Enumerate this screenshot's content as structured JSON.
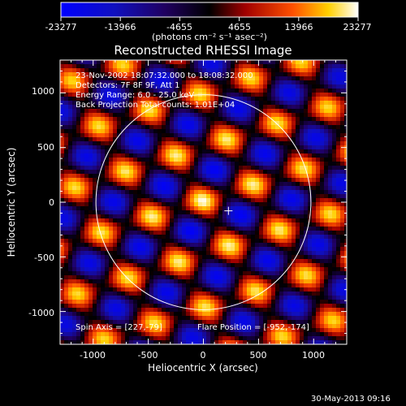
{
  "colorbar": {
    "ticks": [
      "-23277",
      "-13966",
      "-4655",
      "4655",
      "13966",
      "23277"
    ],
    "unit_label": "(photons cm⁻² s⁻¹ asec⁻²)"
  },
  "plot": {
    "title": "Reconstructed RHESSI Image",
    "xlabel": "Heliocentric X (arcsec)",
    "ylabel": "Heliocentric Y (arcsec)",
    "xticks": [
      "-1000",
      "-500",
      "0",
      "500",
      "1000"
    ],
    "yticks": [
      "1000",
      "500",
      "0",
      "-500",
      "-1000"
    ],
    "annotations": {
      "time": "23-Nov-2002 18:07:32.000 to 18:08:32.000",
      "detectors": "Detectors: 7F 8F 9F, Att 1",
      "energy": "Energy Range: 6.0 - 25.0 keV",
      "method": "Back Projection   Total counts: 1.01E+04",
      "spin_axis": "Spin Axis = [227,-79]",
      "flare_position": "Flare Position = [-952,-174]"
    }
  },
  "footer": {
    "date": "30-May-2013 09:16"
  },
  "chart_data": {
    "type": "heatmap",
    "title": "Reconstructed RHESSI Image",
    "xlabel": "Heliocentric X (arcsec)",
    "ylabel": "Heliocentric Y (arcsec)",
    "xlim": [
      -1300,
      1300
    ],
    "ylim": [
      -1300,
      1300
    ],
    "color_range": [
      -23277,
      23277
    ],
    "colorbar_ticks": [
      -23277,
      -13966,
      -4655,
      4655,
      13966,
      23277
    ],
    "solar_limb_radius": 975,
    "marker": [
      227,
      -79
    ]
  }
}
